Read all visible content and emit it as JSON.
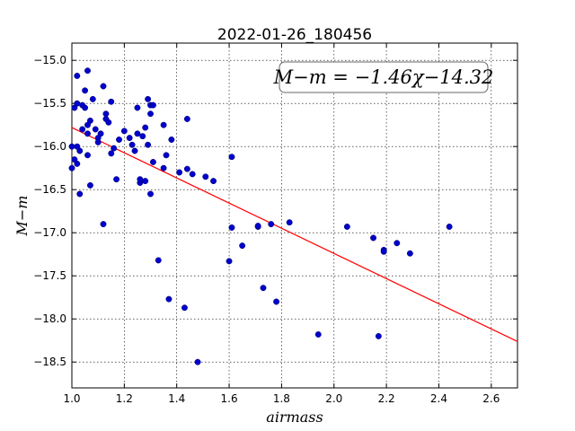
{
  "chart_data": {
    "type": "scatter",
    "title": "2022-01-26_180456",
    "xlabel": "airmass",
    "ylabel": "M−m",
    "xlim": [
      1.0,
      2.7
    ],
    "ylim": [
      -18.8,
      -14.8
    ],
    "y_inverted_display": false,
    "x_ticks": [
      1.0,
      1.2,
      1.4,
      1.6,
      1.8,
      2.0,
      2.2,
      2.4,
      2.6
    ],
    "x_tick_labels": [
      "1.0",
      "1.2",
      "1.4",
      "1.6",
      "1.8",
      "2.0",
      "2.2",
      "2.4",
      "2.6"
    ],
    "y_ticks": [
      -15.0,
      -15.5,
      -16.0,
      -16.5,
      -17.0,
      -17.5,
      -18.0,
      -18.5
    ],
    "y_tick_labels": [
      "−15.0",
      "−15.5",
      "−16.0",
      "−16.5",
      "−17.0",
      "−17.5",
      "−18.0",
      "−18.5"
    ],
    "grid": true,
    "fit_label": "M−m = −1.46χ−14.32",
    "fit_label_position": "top-right",
    "fit": {
      "slope": -1.46,
      "intercept": -14.32,
      "color": "#ff0000"
    },
    "marker_color": "#0000cc",
    "points": [
      [
        1.0,
        -16.0
      ],
      [
        1.0,
        -16.25
      ],
      [
        1.01,
        -15.55
      ],
      [
        1.01,
        -16.15
      ],
      [
        1.02,
        -15.18
      ],
      [
        1.02,
        -15.5
      ],
      [
        1.02,
        -16.0
      ],
      [
        1.02,
        -16.2
      ],
      [
        1.03,
        -16.05
      ],
      [
        1.03,
        -16.55
      ],
      [
        1.04,
        -15.52
      ],
      [
        1.04,
        -15.8
      ],
      [
        1.05,
        -15.35
      ],
      [
        1.05,
        -15.55
      ],
      [
        1.06,
        -15.12
      ],
      [
        1.06,
        -15.75
      ],
      [
        1.06,
        -15.85
      ],
      [
        1.06,
        -16.1
      ],
      [
        1.07,
        -16.45
      ],
      [
        1.07,
        -15.7
      ],
      [
        1.08,
        -15.45
      ],
      [
        1.09,
        -15.8
      ],
      [
        1.1,
        -15.9
      ],
      [
        1.1,
        -15.95
      ],
      [
        1.11,
        -15.85
      ],
      [
        1.12,
        -15.3
      ],
      [
        1.12,
        -16.9
      ],
      [
        1.13,
        -15.62
      ],
      [
        1.13,
        -15.68
      ],
      [
        1.14,
        -15.72
      ],
      [
        1.15,
        -15.48
      ],
      [
        1.15,
        -16.08
      ],
      [
        1.16,
        -16.02
      ],
      [
        1.17,
        -16.38
      ],
      [
        1.18,
        -15.92
      ],
      [
        1.2,
        -15.82
      ],
      [
        1.22,
        -15.9
      ],
      [
        1.23,
        -15.98
      ],
      [
        1.24,
        -16.05
      ],
      [
        1.25,
        -15.55
      ],
      [
        1.25,
        -15.85
      ],
      [
        1.26,
        -16.42
      ],
      [
        1.26,
        -16.38
      ],
      [
        1.27,
        -15.88
      ],
      [
        1.28,
        -16.4
      ],
      [
        1.28,
        -15.78
      ],
      [
        1.29,
        -15.98
      ],
      [
        1.29,
        -15.45
      ],
      [
        1.3,
        -15.52
      ],
      [
        1.3,
        -15.62
      ],
      [
        1.3,
        -16.55
      ],
      [
        1.31,
        -15.52
      ],
      [
        1.31,
        -16.18
      ],
      [
        1.33,
        -17.32
      ],
      [
        1.35,
        -15.75
      ],
      [
        1.35,
        -16.25
      ],
      [
        1.36,
        -16.1
      ],
      [
        1.37,
        -17.77
      ],
      [
        1.38,
        -15.92
      ],
      [
        1.41,
        -16.3
      ],
      [
        1.43,
        -17.87
      ],
      [
        1.44,
        -16.26
      ],
      [
        1.44,
        -15.68
      ],
      [
        1.46,
        -16.32
      ],
      [
        1.48,
        -18.5
      ],
      [
        1.51,
        -16.35
      ],
      [
        1.54,
        -16.4
      ],
      [
        1.6,
        -17.33
      ],
      [
        1.61,
        -16.94
      ],
      [
        1.61,
        -16.12
      ],
      [
        1.65,
        -17.15
      ],
      [
        1.71,
        -16.93
      ],
      [
        1.71,
        -16.92
      ],
      [
        1.73,
        -17.64
      ],
      [
        1.76,
        -16.9
      ],
      [
        1.78,
        -17.8
      ],
      [
        1.83,
        -16.88
      ],
      [
        1.94,
        -18.18
      ],
      [
        2.05,
        -16.93
      ],
      [
        2.15,
        -17.06
      ],
      [
        2.17,
        -18.2
      ],
      [
        2.19,
        -17.2
      ],
      [
        2.19,
        -17.22
      ],
      [
        2.24,
        -17.12
      ],
      [
        2.29,
        -17.24
      ],
      [
        2.44,
        -16.93
      ]
    ]
  }
}
